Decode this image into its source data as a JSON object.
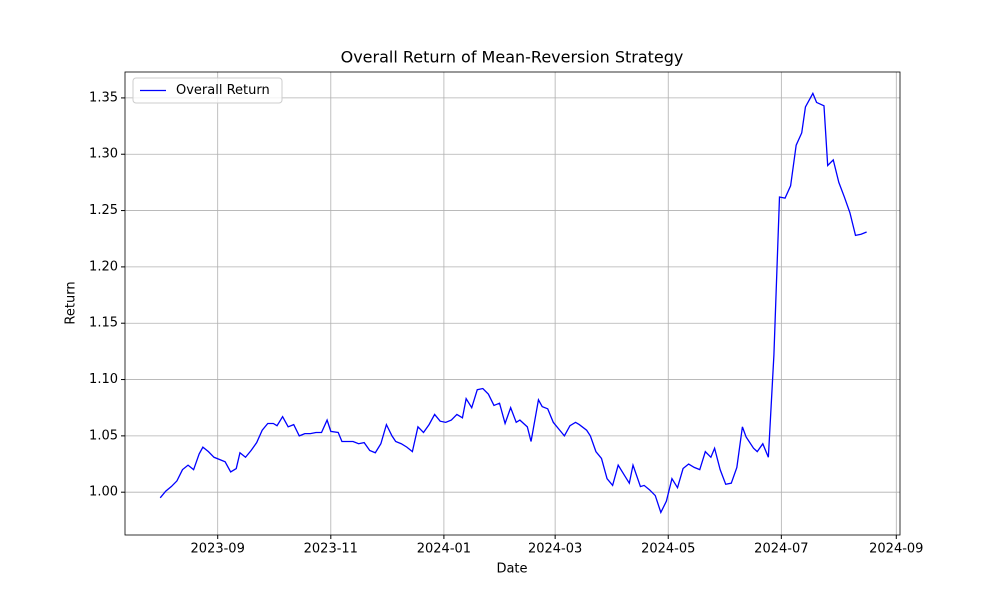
{
  "chart_data": {
    "type": "line",
    "title": "Overall Return of Mean-Reversion Strategy",
    "x_label": "Date",
    "y_label": "Return",
    "x": [
      "2023-08-01",
      "2023-08-04",
      "2023-08-07",
      "2023-08-10",
      "2023-08-13",
      "2023-08-16",
      "2023-08-19",
      "2023-08-22",
      "2023-08-24",
      "2023-08-27",
      "2023-08-30",
      "2023-09-02",
      "2023-09-05",
      "2023-09-08",
      "2023-09-11",
      "2023-09-13",
      "2023-09-16",
      "2023-09-19",
      "2023-09-22",
      "2023-09-25",
      "2023-09-28",
      "2023-10-01",
      "2023-10-03",
      "2023-10-06",
      "2023-10-09",
      "2023-10-12",
      "2023-10-15",
      "2023-10-18",
      "2023-10-21",
      "2023-10-24",
      "2023-10-27",
      "2023-10-30",
      "2023-11-01",
      "2023-11-05",
      "2023-11-07",
      "2023-11-11",
      "2023-11-13",
      "2023-11-16",
      "2023-11-19",
      "2023-11-22",
      "2023-11-25",
      "2023-11-28",
      "2023-12-01",
      "2023-12-04",
      "2023-12-06",
      "2023-12-09",
      "2023-12-12",
      "2023-12-15",
      "2023-12-18",
      "2023-12-21",
      "2023-12-24",
      "2023-12-27",
      "2023-12-30",
      "2024-01-02",
      "2024-01-05",
      "2024-01-08",
      "2024-01-11",
      "2024-01-13",
      "2024-01-16",
      "2024-01-19",
      "2024-01-22",
      "2024-01-25",
      "2024-01-28",
      "2024-01-31",
      "2024-02-03",
      "2024-02-06",
      "2024-02-09",
      "2024-02-11",
      "2024-02-15",
      "2024-02-17",
      "2024-02-21",
      "2024-02-23",
      "2024-02-26",
      "2024-02-29",
      "2024-03-03",
      "2024-03-06",
      "2024-03-09",
      "2024-03-12",
      "2024-03-14",
      "2024-03-18",
      "2024-03-20",
      "2024-03-23",
      "2024-03-26",
      "2024-03-29",
      "2024-04-01",
      "2024-04-04",
      "2024-04-07",
      "2024-04-10",
      "2024-04-12",
      "2024-04-16",
      "2024-04-18",
      "2024-04-21",
      "2024-04-24",
      "2024-04-27",
      "2024-04-30",
      "2024-05-03",
      "2024-05-06",
      "2024-05-09",
      "2024-05-12",
      "2024-05-15",
      "2024-05-18",
      "2024-05-21",
      "2024-05-24",
      "2024-05-26",
      "2024-05-29",
      "2024-06-01",
      "2024-06-04",
      "2024-06-07",
      "2024-06-10",
      "2024-06-12",
      "2024-06-16",
      "2024-06-18",
      "2024-06-21",
      "2024-06-24",
      "2024-06-27",
      "2024-06-30",
      "2024-07-03",
      "2024-07-06",
      "2024-07-09",
      "2024-07-12",
      "2024-07-14",
      "2024-07-18",
      "2024-07-20",
      "2024-07-24",
      "2024-07-26",
      "2024-07-29",
      "2024-08-01",
      "2024-08-04",
      "2024-08-07",
      "2024-08-10",
      "2024-08-13",
      "2024-08-16"
    ],
    "series": [
      {
        "name": "Overall Return",
        "color": "#0000ff",
        "values": [
          0.995,
          1.001,
          1.005,
          1.01,
          1.02,
          1.024,
          1.02,
          1.034,
          1.04,
          1.036,
          1.031,
          1.029,
          1.027,
          1.018,
          1.021,
          1.035,
          1.031,
          1.037,
          1.044,
          1.055,
          1.061,
          1.061,
          1.059,
          1.067,
          1.058,
          1.06,
          1.05,
          1.052,
          1.052,
          1.053,
          1.053,
          1.064,
          1.054,
          1.053,
          1.045,
          1.045,
          1.045,
          1.043,
          1.044,
          1.037,
          1.035,
          1.043,
          1.06,
          1.05,
          1.045,
          1.043,
          1.04,
          1.036,
          1.058,
          1.053,
          1.06,
          1.069,
          1.063,
          1.062,
          1.064,
          1.069,
          1.066,
          1.083,
          1.075,
          1.091,
          1.092,
          1.087,
          1.077,
          1.079,
          1.061,
          1.075,
          1.062,
          1.064,
          1.058,
          1.045,
          1.082,
          1.076,
          1.074,
          1.062,
          1.056,
          1.05,
          1.059,
          1.062,
          1.06,
          1.055,
          1.05,
          1.036,
          1.03,
          1.012,
          1.006,
          1.024,
          1.016,
          1.008,
          1.024,
          1.005,
          1.006,
          1.002,
          0.997,
          0.982,
          0.992,
          1.012,
          1.004,
          1.021,
          1.025,
          1.022,
          1.02,
          1.036,
          1.031,
          1.039,
          1.02,
          1.007,
          1.008,
          1.022,
          1.058,
          1.049,
          1.039,
          1.036,
          1.043,
          1.031,
          1.122,
          1.262,
          1.261,
          1.272,
          1.308,
          1.319,
          1.342,
          1.354,
          1.346,
          1.343,
          1.29,
          1.295,
          1.275,
          1.262,
          1.248,
          1.228,
          1.229,
          1.231
        ]
      }
    ],
    "xlim": [
      "2023-07-13",
      "2024-09-03"
    ],
    "xticks": [
      {
        "value": "2023-09-01",
        "label": "2023-09"
      },
      {
        "value": "2023-11-01",
        "label": "2023-11"
      },
      {
        "value": "2024-01-01",
        "label": "2024-01"
      },
      {
        "value": "2024-03-01",
        "label": "2024-03"
      },
      {
        "value": "2024-05-01",
        "label": "2024-05"
      },
      {
        "value": "2024-07-01",
        "label": "2024-07"
      },
      {
        "value": "2024-09-01",
        "label": "2024-09"
      }
    ],
    "ylim": [
      0.962,
      1.373
    ],
    "yticks": [
      {
        "value": 1,
        "label": "1.00"
      },
      1.05,
      {
        "value": 1.1,
        "label": "1.10"
      },
      1.15,
      {
        "value": 1.2,
        "label": "1.20"
      },
      1.25,
      {
        "value": 1.3,
        "label": "1.30"
      },
      1.35
    ],
    "grid": true,
    "legend": "upper left"
  }
}
